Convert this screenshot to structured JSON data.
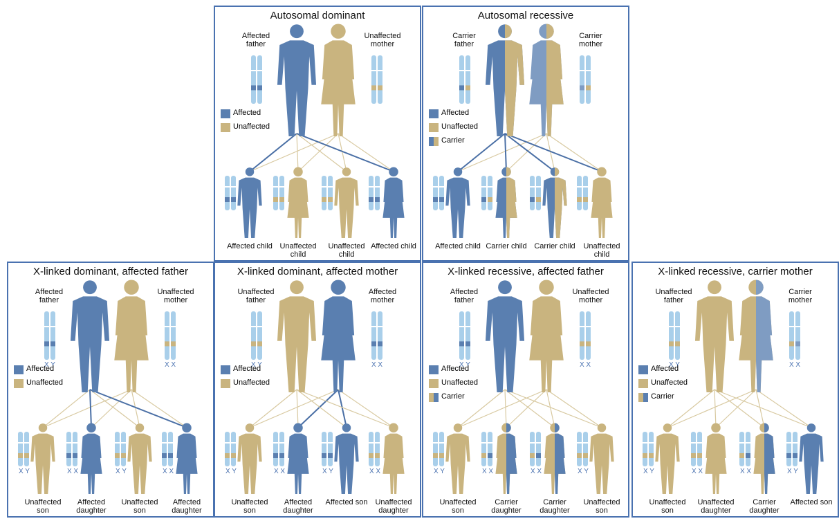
{
  "panels": [
    {
      "title": "Autosomal dominant",
      "father": {
        "label": "Affected father",
        "colors": [
          "#5a7fb0"
        ]
      },
      "mother": {
        "label": "Unaffected mother",
        "colors": [
          "#c9b47f"
        ]
      },
      "legend": [
        {
          "label": "Affected",
          "colors": [
            "#5a7fb0"
          ]
        },
        {
          "label": "Unaffected",
          "colors": [
            "#c9b47f"
          ]
        }
      ],
      "children": [
        {
          "label": "Affected child",
          "colors": [
            "#5a7fb0"
          ]
        },
        {
          "label": "Unaffected child",
          "colors": [
            "#c9b47f"
          ]
        },
        {
          "label": "Unaffected child",
          "colors": [
            "#c9b47f"
          ]
        },
        {
          "label": "Affected child",
          "colors": [
            "#5a7fb0"
          ]
        }
      ]
    },
    {
      "title": "Autosomal recessive",
      "father": {
        "label": "Carrier father",
        "colors": [
          "#5a7fb0",
          "#c9b47f"
        ]
      },
      "mother": {
        "label": "Carrier mother",
        "colors": [
          "#7f9cc2",
          "#c9b47f"
        ]
      },
      "legend": [
        {
          "label": "Affected",
          "colors": [
            "#5a7fb0"
          ]
        },
        {
          "label": "Unaffected",
          "colors": [
            "#c9b47f"
          ]
        },
        {
          "label": "Carrier",
          "colors": [
            "#5a7fb0",
            "#c9b47f"
          ]
        }
      ],
      "children": [
        {
          "label": "Affected child",
          "colors": [
            "#5a7fb0"
          ]
        },
        {
          "label": "Carrier child",
          "colors": [
            "#5a7fb0",
            "#c9b47f"
          ]
        },
        {
          "label": "Carrier child",
          "colors": [
            "#5a7fb0",
            "#c9b47f"
          ]
        },
        {
          "label": "Unaffected child",
          "colors": [
            "#c9b47f"
          ]
        }
      ]
    },
    {
      "title": "X-linked dominant, affected father",
      "father": {
        "label": "Affected father",
        "chromosomes": "X Y",
        "colors": [
          "#5a7fb0"
        ]
      },
      "mother": {
        "label": "Unaffected mother",
        "chromosomes": "X X",
        "colors": [
          "#c9b47f"
        ]
      },
      "legend": [
        {
          "label": "Affected",
          "colors": [
            "#5a7fb0"
          ]
        },
        {
          "label": "Unaffected",
          "colors": [
            "#c9b47f"
          ]
        }
      ],
      "children": [
        {
          "label": "Unaffected son",
          "chromosomes": "X Y",
          "colors": [
            "#c9b47f"
          ]
        },
        {
          "label": "Affected daughter",
          "chromosomes": "X X",
          "colors": [
            "#5a7fb0"
          ]
        },
        {
          "label": "Unaffected son",
          "chromosomes": "X Y",
          "colors": [
            "#c9b47f"
          ]
        },
        {
          "label": "Affected daughter",
          "chromosomes": "X X",
          "colors": [
            "#5a7fb0"
          ]
        }
      ]
    },
    {
      "title": "X-linked dominant, affected mother",
      "father": {
        "label": "Unaffected father",
        "chromosomes": "X Y",
        "colors": [
          "#c9b47f"
        ]
      },
      "mother": {
        "label": "Affected mother",
        "chromosomes": "X X",
        "colors": [
          "#5a7fb0"
        ]
      },
      "legend": [
        {
          "label": "Affected",
          "colors": [
            "#5a7fb0"
          ]
        },
        {
          "label": "Unaffected",
          "colors": [
            "#c9b47f"
          ]
        }
      ],
      "children": [
        {
          "label": "Unaffected son",
          "chromosomes": "X Y",
          "colors": [
            "#c9b47f"
          ]
        },
        {
          "label": "Affected daughter",
          "chromosomes": "X X",
          "colors": [
            "#5a7fb0"
          ]
        },
        {
          "label": "Affected son",
          "chromosomes": "X Y",
          "colors": [
            "#5a7fb0"
          ]
        },
        {
          "label": "Unaffected daughter",
          "chromosomes": "X X",
          "colors": [
            "#c9b47f"
          ]
        }
      ]
    },
    {
      "title": "X-linked recessive, affected father",
      "father": {
        "label": "Affected father",
        "chromosomes": "X Y",
        "colors": [
          "#5a7fb0"
        ]
      },
      "mother": {
        "label": "Unaffected mother",
        "chromosomes": "X X",
        "colors": [
          "#c9b47f"
        ]
      },
      "legend": [
        {
          "label": "Affected",
          "colors": [
            "#5a7fb0"
          ]
        },
        {
          "label": "Unaffected",
          "colors": [
            "#c9b47f"
          ]
        },
        {
          "label": "Carrier",
          "colors": [
            "#c9b47f",
            "#5a7fb0"
          ]
        }
      ],
      "children": [
        {
          "label": "Unaffected son",
          "chromosomes": "X Y",
          "colors": [
            "#c9b47f"
          ]
        },
        {
          "label": "Carrier daughter",
          "chromosomes": "X X",
          "colors": [
            "#c9b47f",
            "#5a7fb0"
          ]
        },
        {
          "label": "Carrier daughter",
          "chromosomes": "X X",
          "colors": [
            "#c9b47f",
            "#5a7fb0"
          ]
        },
        {
          "label": "Unaffected son",
          "chromosomes": "X Y",
          "colors": [
            "#c9b47f"
          ]
        }
      ]
    },
    {
      "title": "X-linked recessive, carrier mother",
      "father": {
        "label": "Unaffected father",
        "chromosomes": "X Y",
        "colors": [
          "#c9b47f"
        ]
      },
      "mother": {
        "label": "Carrier mother",
        "chromosomes": "X X",
        "colors": [
          "#c9b47f",
          "#7f9cc2"
        ]
      },
      "legend": [
        {
          "label": "Affected",
          "colors": [
            "#5a7fb0"
          ]
        },
        {
          "label": "Unaffected",
          "colors": [
            "#c9b47f"
          ]
        },
        {
          "label": "Carrier",
          "colors": [
            "#c9b47f",
            "#5a7fb0"
          ]
        }
      ],
      "children": [
        {
          "label": "Unaffected son",
          "chromosomes": "X Y",
          "colors": [
            "#c9b47f"
          ]
        },
        {
          "label": "Unaffected daughter",
          "chromosomes": "X X",
          "colors": [
            "#c9b47f"
          ]
        },
        {
          "label": "Carrier daughter",
          "chromosomes": "X X",
          "colors": [
            "#c9b47f",
            "#5a7fb0"
          ]
        },
        {
          "label": "Affected son",
          "chromosomes": "X Y",
          "colors": [
            "#5a7fb0"
          ]
        }
      ]
    }
  ]
}
